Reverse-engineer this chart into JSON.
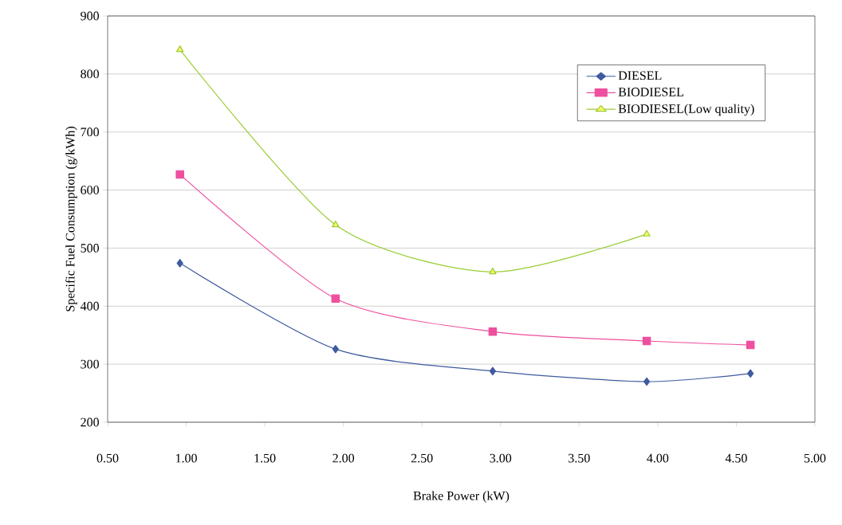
{
  "chart_data": {
    "type": "line",
    "xlabel": "Brake Power (kW)",
    "ylabel": "Specific Fuel Consumption (g/kWh)",
    "xlim": [
      0.5,
      5.0
    ],
    "ylim": [
      200,
      900
    ],
    "xticks": [
      {
        "value": 0.5,
        "label": "0.50"
      },
      {
        "value": 1.0,
        "label": "1.00"
      },
      {
        "value": 1.5,
        "label": "1.50"
      },
      {
        "value": 2.0,
        "label": "2.00"
      },
      {
        "value": 2.5,
        "label": "2.50"
      },
      {
        "value": 3.0,
        "label": "3.00"
      },
      {
        "value": 3.5,
        "label": "3.50"
      },
      {
        "value": 4.0,
        "label": "4.00"
      },
      {
        "value": 4.5,
        "label": "4.50"
      },
      {
        "value": 5.0,
        "label": "5.00"
      }
    ],
    "yticks": [
      200,
      300,
      400,
      500,
      600,
      700,
      800,
      900
    ],
    "grid": "y",
    "legend": "top right",
    "series": [
      {
        "name": "DIESEL",
        "color": "#3f5a9e",
        "marker": "diamond",
        "x": [
          0.96,
          1.95,
          2.95,
          3.93,
          4.59
        ],
        "values": [
          474,
          326,
          288,
          270,
          284
        ]
      },
      {
        "name": "BIODIESEL",
        "color": "#ee4f9e",
        "marker": "square",
        "x": [
          0.96,
          1.95,
          2.95,
          3.93,
          4.59
        ],
        "values": [
          627,
          413,
          356,
          340,
          333
        ]
      },
      {
        "name": "BIODIESEL(Low quality)",
        "color": "#99cc33",
        "marker": "triangle",
        "x": [
          0.96,
          1.95,
          2.95,
          3.93
        ],
        "values": [
          842,
          540,
          459,
          524
        ]
      }
    ]
  }
}
